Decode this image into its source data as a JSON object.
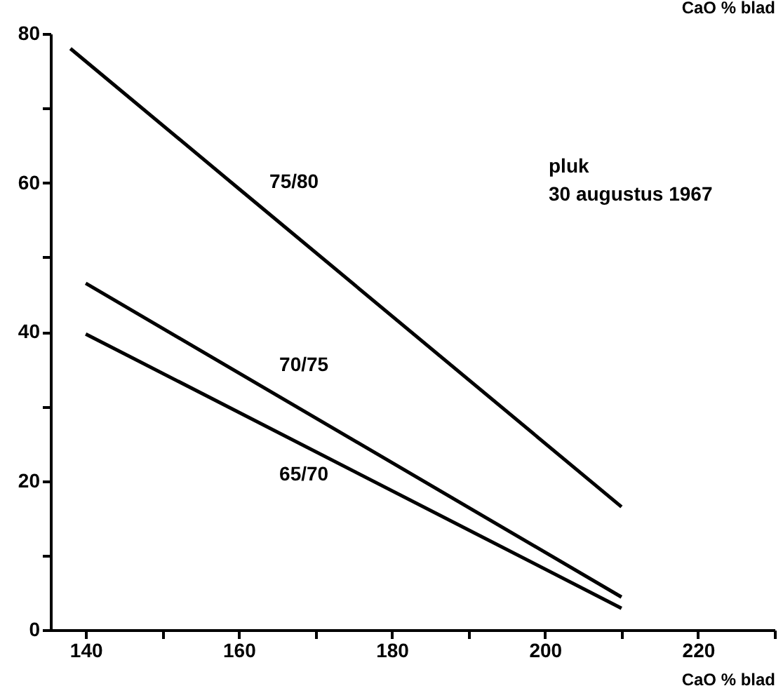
{
  "chart_data": {
    "type": "line",
    "xlabel": "CaO % blad",
    "ylabel": "CaO % blad",
    "annotations": [
      "pluk\n30 augustus 1967"
    ],
    "series": [
      {
        "name": "75/80",
        "color": "#000000",
        "x": [
          138,
          160,
          210
        ],
        "values": [
          78,
          59.2,
          16.5
        ]
      },
      {
        "name": "70/75",
        "color": "#000000",
        "x": [
          140,
          210
        ],
        "values": [
          46.5,
          4.4
        ]
      },
      {
        "name": "65/70",
        "color": "#000000",
        "x": [
          140,
          210
        ],
        "values": [
          39.7,
          2.9
        ]
      }
    ],
    "xlim": [
      135.4,
      230
    ],
    "ylim": [
      0,
      80
    ],
    "xticks": [
      140,
      {
        "value": 150,
        "label": null
      },
      160,
      {
        "value": 170,
        "label": null
      },
      180,
      {
        "value": 190,
        "label": null
      },
      200,
      {
        "value": 210,
        "label": null
      },
      220,
      {
        "value": 230,
        "label": null
      }
    ],
    "yticks": [
      0,
      {
        "value": 10,
        "label": null
      },
      20,
      {
        "value": 30,
        "label": null
      },
      40,
      {
        "value": 50,
        "label": null
      },
      60,
      {
        "value": 70,
        "label": null
      },
      80
    ],
    "grid": false,
    "marker": "none",
    "line_style": "solid"
  }
}
